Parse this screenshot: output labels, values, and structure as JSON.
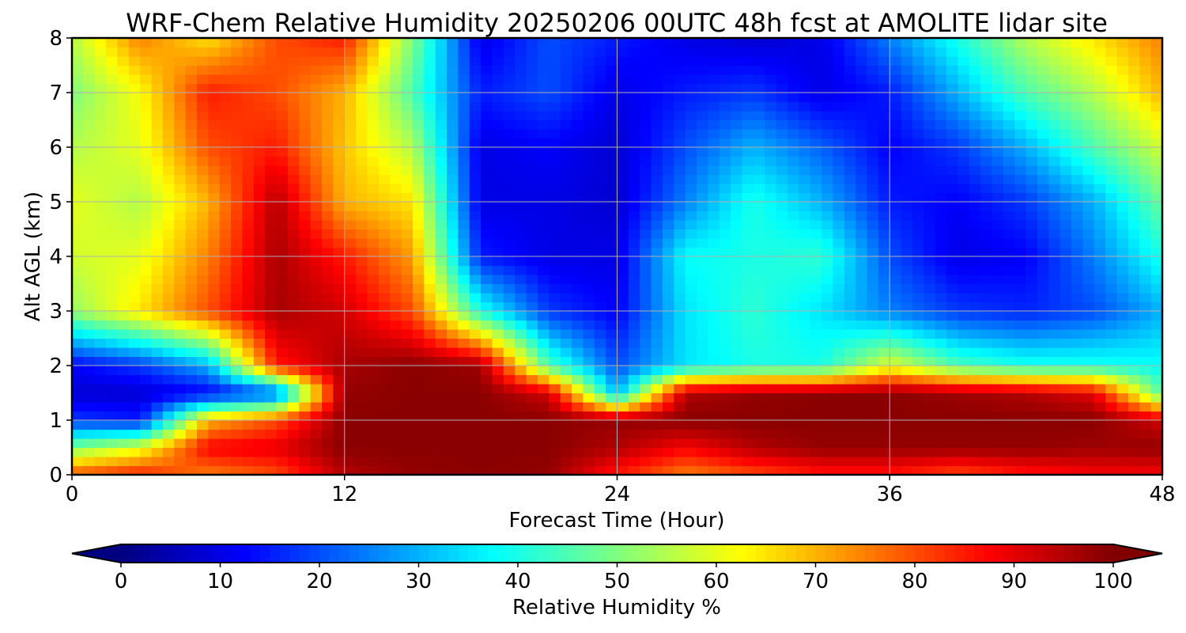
{
  "chart_data": {
    "type": "heatmap",
    "title": "WRF-Chem Relative Humidity 20250206 00UTC 48h fcst at AMOLITE lidar site",
    "xlabel": "Forecast Time (Hour)",
    "ylabel": "Alt AGL (km)",
    "xlim": [
      0,
      48
    ],
    "ylim": [
      0,
      8
    ],
    "x_ticks": [
      0,
      12,
      24,
      36,
      48
    ],
    "y_ticks": [
      0,
      1,
      2,
      3,
      4,
      5,
      6,
      7,
      8
    ],
    "grid": true,
    "colormap": "jet",
    "colorbar": {
      "label": "Relative Humidity %",
      "min": 0,
      "max": 100,
      "ticks": [
        0,
        10,
        20,
        30,
        40,
        50,
        60,
        70,
        80,
        90,
        100
      ],
      "extend": "both",
      "orientation": "horizontal"
    },
    "x": [
      0,
      3,
      6,
      9,
      12,
      15,
      18,
      21,
      24,
      27,
      30,
      33,
      36,
      39,
      42,
      45,
      48
    ],
    "y": [
      0,
      0.5,
      1,
      1.5,
      2,
      3,
      4,
      5,
      6,
      7,
      8
    ],
    "values": [
      [
        80,
        85,
        75,
        80,
        95,
        98,
        99,
        98,
        85,
        75,
        80,
        85,
        85,
        80,
        85,
        88,
        88
      ],
      [
        50,
        60,
        88,
        90,
        99,
        99,
        99,
        99,
        95,
        88,
        95,
        98,
        98,
        98,
        98,
        97,
        98
      ],
      [
        18,
        15,
        70,
        80,
        99,
        99,
        99,
        99,
        98,
        99,
        99,
        99,
        99,
        99,
        99,
        99,
        92
      ],
      [
        8,
        8,
        12,
        20,
        98,
        99,
        99,
        92,
        30,
        95,
        98,
        99,
        99,
        97,
        95,
        90,
        45
      ],
      [
        12,
        18,
        30,
        85,
        96,
        99,
        97,
        45,
        20,
        35,
        40,
        40,
        60,
        45,
        40,
        40,
        38
      ],
      [
        52,
        65,
        80,
        96,
        92,
        80,
        40,
        18,
        12,
        35,
        42,
        35,
        25,
        18,
        16,
        20,
        30
      ],
      [
        58,
        60,
        75,
        96,
        85,
        72,
        15,
        10,
        10,
        38,
        40,
        42,
        20,
        10,
        12,
        25,
        40
      ],
      [
        60,
        55,
        70,
        95,
        70,
        65,
        10,
        10,
        8,
        25,
        40,
        30,
        15,
        12,
        18,
        30,
        48
      ],
      [
        55,
        60,
        80,
        85,
        68,
        55,
        10,
        12,
        8,
        20,
        30,
        22,
        12,
        18,
        30,
        45,
        58
      ],
      [
        50,
        62,
        85,
        80,
        70,
        45,
        15,
        20,
        10,
        15,
        18,
        10,
        15,
        30,
        45,
        55,
        70
      ],
      [
        55,
        75,
        65,
        80,
        85,
        50,
        10,
        20,
        15,
        10,
        8,
        10,
        25,
        40,
        55,
        65,
        75
      ]
    ]
  }
}
